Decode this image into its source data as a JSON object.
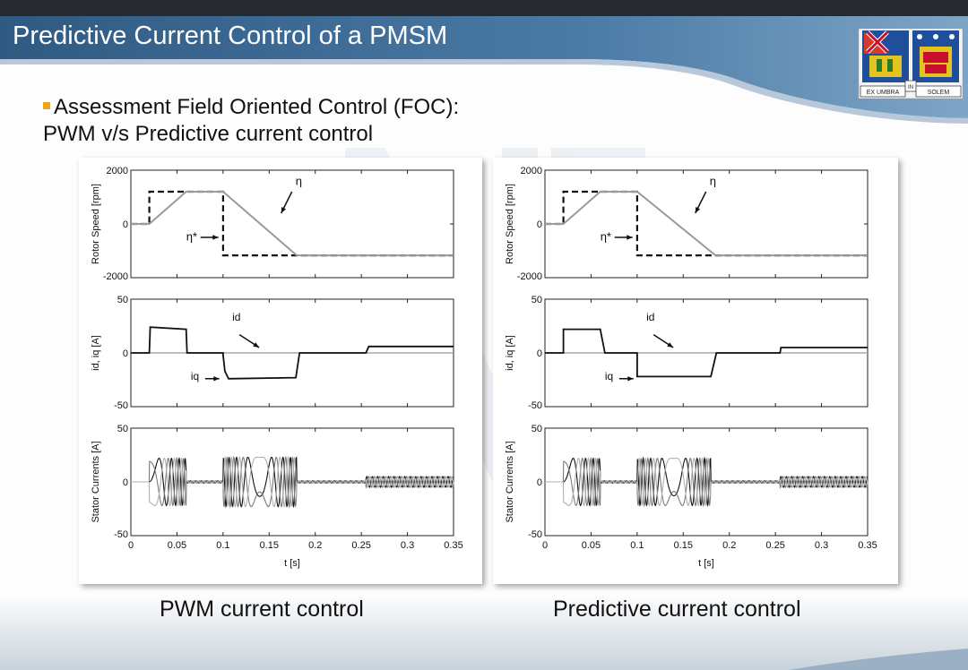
{
  "slide": {
    "title": "Predictive Current Control of a PMSM",
    "subtitle_line1": "Assessment Field Oriented Control (FOC):",
    "subtitle_line2": "PWM v/s Predictive current control",
    "crest_left": "EX UMBRA",
    "crest_mid": "IN",
    "crest_right": "SOLEM",
    "colors": {
      "header_blue": "#3f6a92",
      "bullet": "#f0a31c"
    }
  },
  "chart_data": [
    {
      "type": "line",
      "caption": "PWM current control",
      "xlabel": "t [s]",
      "x_ticks": [
        "0",
        "0.05",
        "0.1",
        "0.15",
        "0.2",
        "0.25",
        "0.3",
        "0.35"
      ],
      "xlim": [
        0,
        0.35
      ],
      "subplots": [
        {
          "ylabel": "Rotor Speed [rpm]",
          "ylim": [
            -2000,
            2000
          ],
          "y_ticks": [
            "2000",
            "0",
            "-2000"
          ],
          "annotations": [
            "η",
            "η*"
          ],
          "series": [
            {
              "name": "η*",
              "style": "dashed",
              "x": [
                0,
                0.02,
                0.02,
                0.1,
                0.1,
                0.35
              ],
              "y": [
                0,
                0,
                1200,
                1200,
                -1170,
                -1170
              ]
            },
            {
              "name": "η",
              "style": "solid",
              "x": [
                0,
                0.02,
                0.06,
                0.1,
                0.18,
                0.35
              ],
              "y": [
                0,
                0,
                1200,
                1200,
                -1170,
                -1170
              ]
            }
          ]
        },
        {
          "ylabel": "id, iq [A]",
          "ylim": [
            -50,
            50
          ],
          "y_ticks": [
            "50",
            "0",
            "-50"
          ],
          "annotations": [
            "id",
            "iq"
          ],
          "series": [
            {
              "name": "id",
              "style": "solid-gray",
              "x": [
                0,
                0.35
              ],
              "y": [
                0,
                0
              ]
            },
            {
              "name": "iq",
              "style": "solid",
              "x": [
                0,
                0.02,
                0.021,
                0.06,
                0.061,
                0.1,
                0.1,
                0.102,
                0.106,
                0.179,
                0.183,
                0.255,
                0.258,
                0.35
              ],
              "y": [
                0,
                0,
                24,
                22,
                0,
                0,
                -2,
                -17,
                -24,
                -23,
                0,
                0,
                6,
                6
              ]
            }
          ]
        },
        {
          "ylabel": "Stator Currents [A]",
          "ylim": [
            -50,
            50
          ],
          "y_ticks": [
            "50",
            "0",
            "-50"
          ],
          "series": [
            {
              "name": "phase currents",
              "style": "three-phase sinusoids",
              "x": [
                0.02,
                0.06,
                0.1,
                0.18,
                0.255,
                0.35
              ],
              "y": [
                22,
                0,
                23,
                0,
                5,
                5
              ]
            }
          ]
        }
      ]
    },
    {
      "type": "line",
      "caption": "Predictive current control",
      "xlabel": "t [s]",
      "x_ticks": [
        "0",
        "0.05",
        "0.1",
        "0.15",
        "0.2",
        "0.25",
        "0.3",
        "0.35"
      ],
      "xlim": [
        0,
        0.35
      ],
      "subplots": [
        {
          "ylabel": "Rotor Speed [rpm]",
          "ylim": [
            -2000,
            2000
          ],
          "y_ticks": [
            "2000",
            "0",
            "-2000"
          ],
          "annotations": [
            "η",
            "η*"
          ],
          "series": [
            {
              "name": "η*",
              "style": "dashed",
              "x": [
                0,
                0.02,
                0.02,
                0.1,
                0.1,
                0.35
              ],
              "y": [
                0,
                0,
                1200,
                1200,
                -1170,
                -1170
              ]
            },
            {
              "name": "η",
              "style": "solid",
              "x": [
                0,
                0.02,
                0.06,
                0.1,
                0.185,
                0.35
              ],
              "y": [
                0,
                0,
                1200,
                1200,
                -1170,
                -1170
              ]
            }
          ]
        },
        {
          "ylabel": "id, iq [A]",
          "ylim": [
            -50,
            50
          ],
          "y_ticks": [
            "50",
            "0",
            "-50"
          ],
          "annotations": [
            "id",
            "iq"
          ],
          "series": [
            {
              "name": "id",
              "style": "solid-gray",
              "x": [
                0,
                0.35
              ],
              "y": [
                0,
                0
              ]
            },
            {
              "name": "iq",
              "style": "solid",
              "x": [
                0,
                0.02,
                0.02,
                0.06,
                0.065,
                0.1,
                0.1,
                0.18,
                0.186,
                0.255,
                0.256,
                0.35
              ],
              "y": [
                0,
                0,
                22,
                22,
                0,
                0,
                -22,
                -22,
                0,
                0,
                5,
                5
              ]
            }
          ]
        },
        {
          "ylabel": "Stator Currents [A]",
          "ylim": [
            -50,
            50
          ],
          "y_ticks": [
            "50",
            "0",
            "-50"
          ],
          "series": [
            {
              "name": "phase currents",
              "style": "three-phase sinusoids",
              "x": [
                0.02,
                0.06,
                0.1,
                0.18,
                0.255,
                0.35
              ],
              "y": [
                22,
                0,
                22,
                0,
                5,
                5
              ]
            }
          ]
        }
      ]
    }
  ]
}
